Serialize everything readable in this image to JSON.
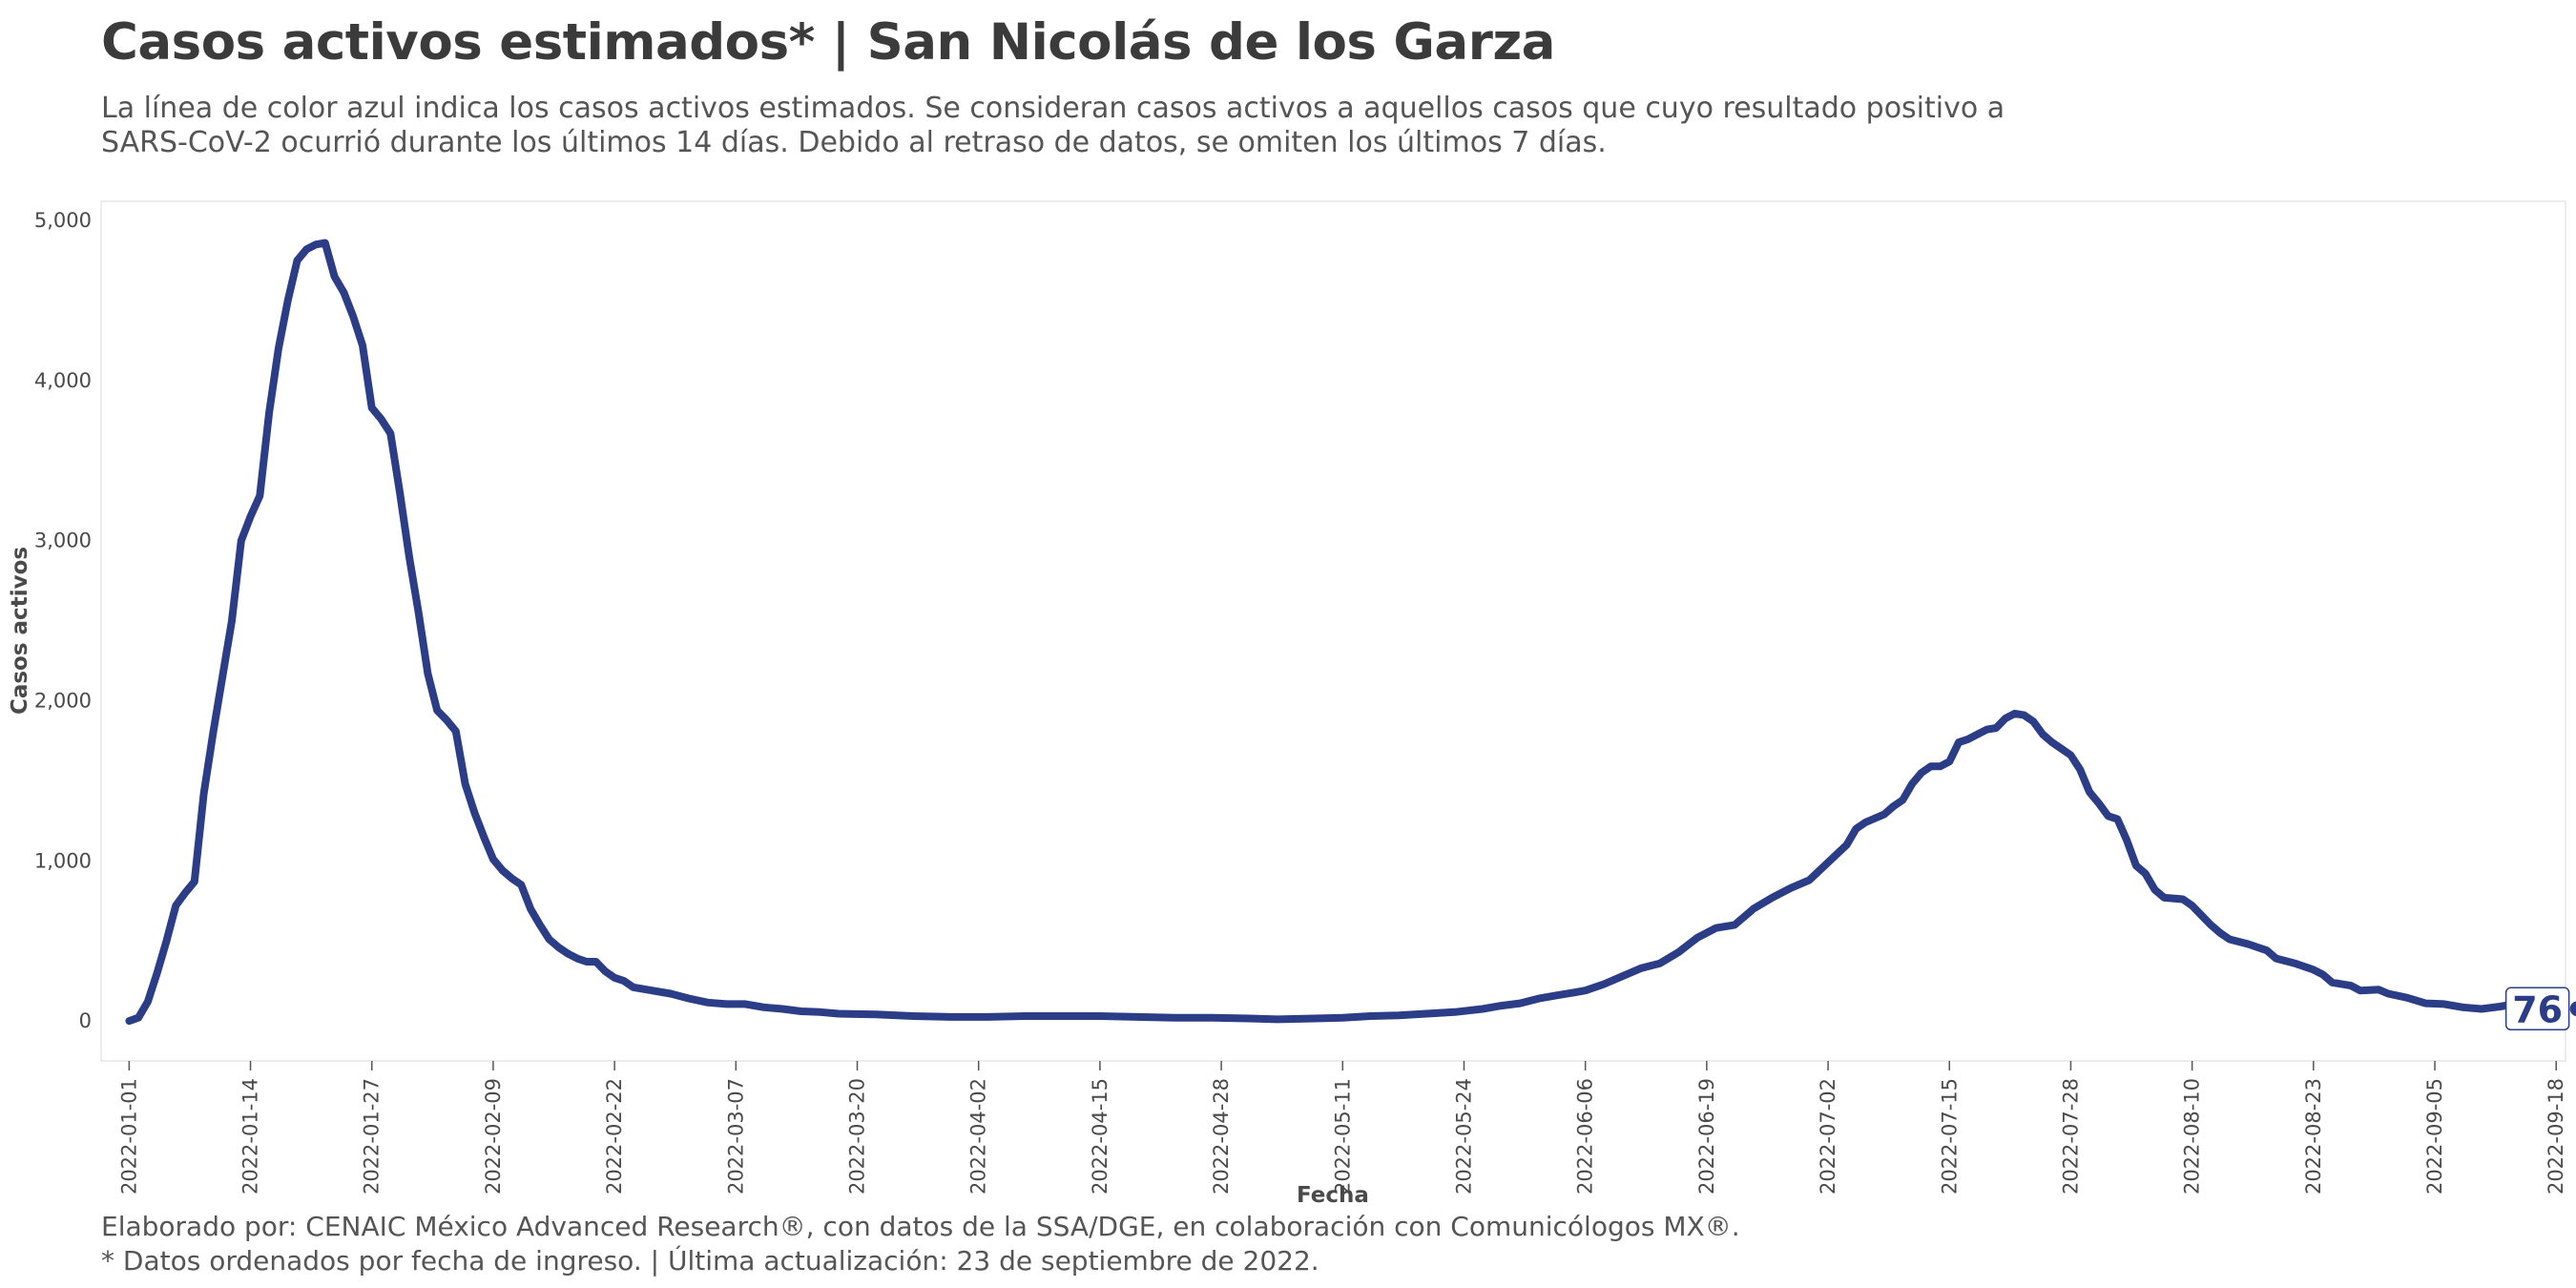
{
  "title": "Casos activos estimados* | San Nicolás de los Garza",
  "subtitle": "La línea de color azul indica los casos activos estimados. Se consideran casos activos a aquellos casos que cuyo resultado positivo a SARS-CoV-2 ocurrió durante los últimos 14 días. Debido al retraso de datos, se omiten los últimos 7 días.",
  "caption_line1": "Elaborado por: CENAIC México Advanced Research®, con datos de la SSA/DGE, en colaboración con Comunicólogos MX®.",
  "caption_line2": "* Datos ordenados por fecha de ingreso. | Última actualización: 23 de septiembre de 2022.",
  "chart_data": {
    "type": "line",
    "xlabel": "Fecha",
    "ylabel": "Casos activos",
    "ylim": [
      -250,
      5120
    ],
    "xlim": [
      "2021-12-29",
      "2022-09-19"
    ],
    "grid": false,
    "line_color": "#2b3d86",
    "y_ticks": [
      0,
      1000,
      2000,
      3000,
      4000,
      5000
    ],
    "y_tick_labels": [
      "0",
      "1,000",
      "2,000",
      "3,000",
      "4,000",
      "5,000"
    ],
    "x_ticks": [
      "2022-01-01",
      "2022-01-14",
      "2022-01-27",
      "2022-02-09",
      "2022-02-22",
      "2022-03-07",
      "2022-03-20",
      "2022-04-02",
      "2022-04-15",
      "2022-04-28",
      "2022-05-11",
      "2022-05-24",
      "2022-06-06",
      "2022-06-19",
      "2022-07-02",
      "2022-07-15",
      "2022-07-28",
      "2022-08-10",
      "2022-08-23",
      "2022-09-05",
      "2022-09-18"
    ],
    "end_label": "76",
    "series": [
      {
        "points": [
          [
            "2022-01-01",
            0
          ],
          [
            "2022-01-02",
            20
          ],
          [
            "2022-01-03",
            120
          ],
          [
            "2022-01-04",
            300
          ],
          [
            "2022-01-05",
            500
          ],
          [
            "2022-01-06",
            720
          ],
          [
            "2022-01-07",
            800
          ],
          [
            "2022-01-08",
            870
          ],
          [
            "2022-01-09",
            1420
          ],
          [
            "2022-01-10",
            1800
          ],
          [
            "2022-01-11",
            2150
          ],
          [
            "2022-01-12",
            2500
          ],
          [
            "2022-01-13",
            3000
          ],
          [
            "2022-01-14",
            3150
          ],
          [
            "2022-01-15",
            3280
          ],
          [
            "2022-01-16",
            3800
          ],
          [
            "2022-01-17",
            4200
          ],
          [
            "2022-01-18",
            4500
          ],
          [
            "2022-01-19",
            4750
          ],
          [
            "2022-01-20",
            4820
          ],
          [
            "2022-01-21",
            4850
          ],
          [
            "2022-01-22",
            4860
          ],
          [
            "2022-01-23",
            4650
          ],
          [
            "2022-01-24",
            4550
          ],
          [
            "2022-01-25",
            4400
          ],
          [
            "2022-01-26",
            4220
          ],
          [
            "2022-01-27",
            3830
          ],
          [
            "2022-01-28",
            3760
          ],
          [
            "2022-01-29",
            3670
          ],
          [
            "2022-01-30",
            3300
          ],
          [
            "2022-01-31",
            2900
          ],
          [
            "2022-02-01",
            2550
          ],
          [
            "2022-02-02",
            2170
          ],
          [
            "2022-02-03",
            1940
          ],
          [
            "2022-02-04",
            1880
          ],
          [
            "2022-02-05",
            1810
          ],
          [
            "2022-02-06",
            1480
          ],
          [
            "2022-02-07",
            1300
          ],
          [
            "2022-02-08",
            1150
          ],
          [
            "2022-02-09",
            1010
          ],
          [
            "2022-02-10",
            940
          ],
          [
            "2022-02-11",
            890
          ],
          [
            "2022-02-12",
            850
          ],
          [
            "2022-02-13",
            700
          ],
          [
            "2022-02-14",
            600
          ],
          [
            "2022-02-15",
            510
          ],
          [
            "2022-02-16",
            460
          ],
          [
            "2022-02-17",
            420
          ],
          [
            "2022-02-18",
            390
          ],
          [
            "2022-02-19",
            370
          ],
          [
            "2022-02-20",
            370
          ],
          [
            "2022-02-21",
            310
          ],
          [
            "2022-02-22",
            270
          ],
          [
            "2022-02-23",
            250
          ],
          [
            "2022-02-24",
            210
          ],
          [
            "2022-02-26",
            190
          ],
          [
            "2022-02-28",
            170
          ],
          [
            "2022-03-02",
            140
          ],
          [
            "2022-03-04",
            115
          ],
          [
            "2022-03-06",
            105
          ],
          [
            "2022-03-08",
            105
          ],
          [
            "2022-03-10",
            85
          ],
          [
            "2022-03-12",
            75
          ],
          [
            "2022-03-14",
            60
          ],
          [
            "2022-03-16",
            55
          ],
          [
            "2022-03-18",
            45
          ],
          [
            "2022-03-22",
            40
          ],
          [
            "2022-03-26",
            30
          ],
          [
            "2022-03-30",
            25
          ],
          [
            "2022-04-03",
            25
          ],
          [
            "2022-04-07",
            30
          ],
          [
            "2022-04-11",
            30
          ],
          [
            "2022-04-15",
            30
          ],
          [
            "2022-04-19",
            25
          ],
          [
            "2022-04-23",
            20
          ],
          [
            "2022-04-27",
            20
          ],
          [
            "2022-05-01",
            15
          ],
          [
            "2022-05-04",
            10
          ],
          [
            "2022-05-08",
            15
          ],
          [
            "2022-05-11",
            20
          ],
          [
            "2022-05-14",
            30
          ],
          [
            "2022-05-17",
            35
          ],
          [
            "2022-05-20",
            45
          ],
          [
            "2022-05-23",
            55
          ],
          [
            "2022-05-26",
            75
          ],
          [
            "2022-05-28",
            95
          ],
          [
            "2022-05-30",
            110
          ],
          [
            "2022-06-01",
            140
          ],
          [
            "2022-06-03",
            160
          ],
          [
            "2022-06-05",
            180
          ],
          [
            "2022-06-06",
            190
          ],
          [
            "2022-06-08",
            230
          ],
          [
            "2022-06-10",
            280
          ],
          [
            "2022-06-12",
            330
          ],
          [
            "2022-06-14",
            360
          ],
          [
            "2022-06-16",
            430
          ],
          [
            "2022-06-18",
            520
          ],
          [
            "2022-06-20",
            580
          ],
          [
            "2022-06-22",
            600
          ],
          [
            "2022-06-24",
            700
          ],
          [
            "2022-06-26",
            770
          ],
          [
            "2022-06-28",
            830
          ],
          [
            "2022-06-30",
            880
          ],
          [
            "2022-07-02",
            990
          ],
          [
            "2022-07-04",
            1100
          ],
          [
            "2022-07-05",
            1200
          ],
          [
            "2022-07-06",
            1240
          ],
          [
            "2022-07-08",
            1290
          ],
          [
            "2022-07-09",
            1340
          ],
          [
            "2022-07-10",
            1380
          ],
          [
            "2022-07-11",
            1480
          ],
          [
            "2022-07-12",
            1550
          ],
          [
            "2022-07-13",
            1590
          ],
          [
            "2022-07-14",
            1590
          ],
          [
            "2022-07-15",
            1620
          ],
          [
            "2022-07-16",
            1740
          ],
          [
            "2022-07-17",
            1760
          ],
          [
            "2022-07-18",
            1790
          ],
          [
            "2022-07-19",
            1820
          ],
          [
            "2022-07-20",
            1830
          ],
          [
            "2022-07-21",
            1890
          ],
          [
            "2022-07-22",
            1920
          ],
          [
            "2022-07-23",
            1910
          ],
          [
            "2022-07-24",
            1870
          ],
          [
            "2022-07-25",
            1790
          ],
          [
            "2022-07-26",
            1740
          ],
          [
            "2022-07-27",
            1700
          ],
          [
            "2022-07-28",
            1660
          ],
          [
            "2022-07-29",
            1570
          ],
          [
            "2022-07-30",
            1430
          ],
          [
            "2022-07-31",
            1360
          ],
          [
            "2022-08-01",
            1280
          ],
          [
            "2022-08-02",
            1260
          ],
          [
            "2022-08-03",
            1130
          ],
          [
            "2022-08-04",
            970
          ],
          [
            "2022-08-05",
            920
          ],
          [
            "2022-08-06",
            820
          ],
          [
            "2022-08-07",
            770
          ],
          [
            "2022-08-09",
            760
          ],
          [
            "2022-08-10",
            720
          ],
          [
            "2022-08-11",
            660
          ],
          [
            "2022-08-12",
            600
          ],
          [
            "2022-08-13",
            550
          ],
          [
            "2022-08-14",
            510
          ],
          [
            "2022-08-16",
            480
          ],
          [
            "2022-08-18",
            440
          ],
          [
            "2022-08-19",
            390
          ],
          [
            "2022-08-21",
            360
          ],
          [
            "2022-08-23",
            320
          ],
          [
            "2022-08-24",
            290
          ],
          [
            "2022-08-25",
            240
          ],
          [
            "2022-08-27",
            220
          ],
          [
            "2022-08-28",
            190
          ],
          [
            "2022-08-30",
            195
          ],
          [
            "2022-08-31",
            170
          ],
          [
            "2022-09-02",
            145
          ],
          [
            "2022-09-04",
            110
          ],
          [
            "2022-09-06",
            105
          ],
          [
            "2022-09-08",
            85
          ],
          [
            "2022-09-10",
            75
          ],
          [
            "2022-09-12",
            90
          ],
          [
            "2022-09-14",
            110
          ],
          [
            "2022-09-16",
            76
          ]
        ]
      }
    ]
  }
}
